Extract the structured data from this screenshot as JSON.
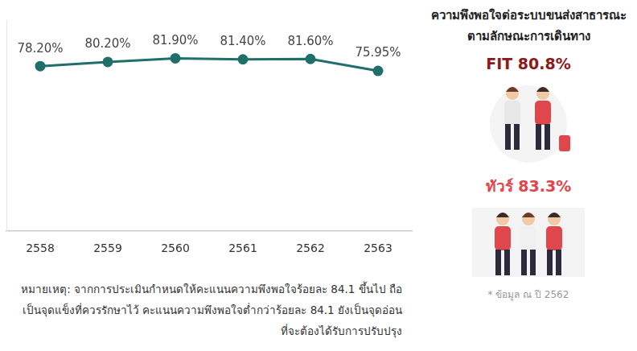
{
  "chart_data": {
    "type": "line",
    "categories": [
      "2558",
      "2559",
      "2560",
      "2561",
      "2562",
      "2563"
    ],
    "values": [
      78.2,
      80.2,
      81.9,
      81.4,
      81.6,
      75.95
    ],
    "value_labels": [
      "78.20%",
      "80.20%",
      "81.90%",
      "81.40%",
      "81.60%",
      "75.95%"
    ],
    "color": "#1f6f6b",
    "ylim": [
      0,
      100
    ],
    "yticks": [],
    "grid": false,
    "data_labels": true,
    "tick_labels": "x",
    "marker": "circle"
  },
  "note": "หมายเหตุ: จากการประเมินกำหนดให้คะแนนความพึงพอใจร้อยละ 84.1 ขึ้นไป ถือเป็นจุดแข็งที่ควรรักษาไว้ คะแนนความพึงพอใจต่ำกว่าร้อยละ 84.1 ยังเป็นจุดอ่อนที่จะต้องได้รับการปรับปรุง",
  "side_panel": {
    "title": "ความพึงพอใจต่อระบบขนส่งสาธารณะตามลักษณะการเดินทาง",
    "items": [
      {
        "name": "FIT",
        "value": 80.8,
        "value_label": "80.8%",
        "color": "#8b1a1a"
      },
      {
        "name": "ทัวร์",
        "value": 83.3,
        "value_label": "83.3%",
        "color": "#e0474c"
      }
    ],
    "footnote": "* ข้อมูล ณ ปี 2562"
  }
}
